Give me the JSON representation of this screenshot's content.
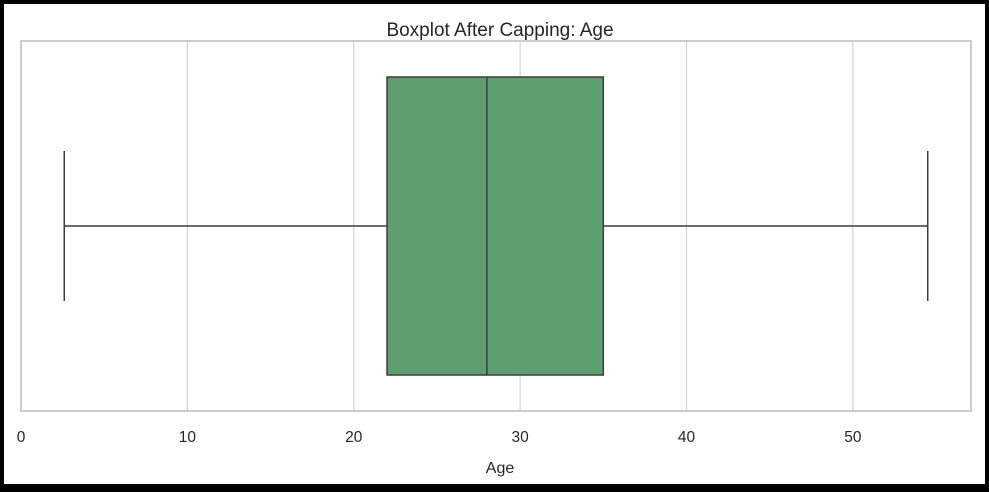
{
  "chart_data": {
    "type": "boxplot",
    "title": "Boxplot After Capping: Age",
    "xlabel": "Age",
    "ylabel": "",
    "xlim": [
      0,
      57.1
    ],
    "xticks": [
      0,
      10,
      20,
      30,
      40,
      50
    ],
    "grid": true,
    "orientation": "horizontal",
    "box": {
      "whisker_low": 2.6,
      "q1": 22.0,
      "median": 28.0,
      "q3": 35.0,
      "whisker_high": 54.5
    },
    "colors": {
      "box_fill": "#5f9e6e",
      "line": "#3c3c3c",
      "grid": "#d6d6d6",
      "frame": "#cccccc"
    }
  }
}
